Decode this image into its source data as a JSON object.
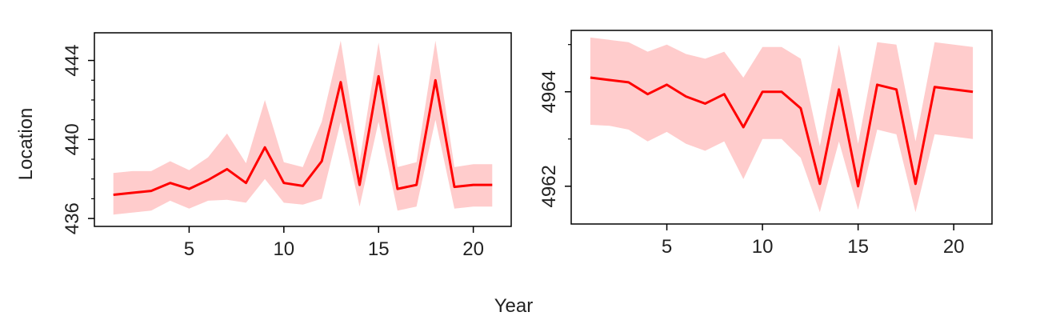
{
  "shared": {
    "xlabel": "Year",
    "ylabel": "Location",
    "line_color": "#ff0000",
    "band_color": "#ffcccc"
  },
  "chart_data": [
    {
      "type": "line",
      "x": [
        1,
        2,
        3,
        4,
        5,
        6,
        7,
        8,
        9,
        10,
        11,
        12,
        13,
        14,
        15,
        16,
        17,
        18,
        19,
        20,
        21
      ],
      "xlim": [
        0,
        22
      ],
      "xticks": [
        5,
        10,
        15,
        20
      ],
      "ylim": [
        435.6,
        445.4
      ],
      "yticks": [
        436,
        440,
        444
      ],
      "yminor": [
        437,
        438,
        439,
        441,
        442,
        443
      ],
      "series": [
        {
          "values": [
            437.2,
            437.3,
            437.4,
            437.8,
            437.5,
            437.95,
            438.5,
            437.8,
            439.6,
            437.8,
            437.65,
            438.9,
            442.9,
            437.7,
            443.2,
            437.5,
            437.7,
            443.0,
            437.6,
            437.7,
            437.7
          ],
          "lower": [
            436.2,
            436.3,
            436.4,
            436.9,
            436.5,
            436.9,
            436.95,
            436.8,
            438.0,
            436.8,
            436.7,
            437.0,
            440.9,
            436.6,
            440.9,
            436.4,
            436.6,
            441.0,
            436.5,
            436.6,
            436.6
          ],
          "upper": [
            438.3,
            438.4,
            438.4,
            438.9,
            438.45,
            439.1,
            440.3,
            438.8,
            442.0,
            438.85,
            438.6,
            440.9,
            445.0,
            438.9,
            444.9,
            438.6,
            438.85,
            445.0,
            438.6,
            438.75,
            438.75
          ]
        }
      ]
    },
    {
      "type": "line",
      "x": [
        1,
        2,
        3,
        4,
        5,
        6,
        7,
        8,
        9,
        10,
        11,
        12,
        13,
        14,
        15,
        16,
        17,
        18,
        19,
        20,
        21
      ],
      "xlim": [
        0,
        22
      ],
      "xticks": [
        5,
        10,
        15,
        20
      ],
      "ylim": [
        4961.2,
        4965.3
      ],
      "yticks": [
        4962,
        4964
      ],
      "yminor": [
        4963,
        4965
      ],
      "series": [
        {
          "values": [
            4964.3,
            4964.25,
            4964.2,
            4963.95,
            4964.15,
            4963.9,
            4963.75,
            4963.95,
            4963.25,
            4964.0,
            4964.0,
            4963.65,
            4962.05,
            4964.05,
            4962.0,
            4964.15,
            4964.05,
            4962.05,
            4964.1,
            4964.05,
            4964.0
          ],
          "lower": [
            4963.3,
            4963.28,
            4963.2,
            4962.95,
            4963.15,
            4962.9,
            4962.75,
            4962.95,
            4962.15,
            4963.0,
            4963.0,
            4962.6,
            4961.45,
            4962.95,
            4961.5,
            4963.2,
            4963.1,
            4961.45,
            4963.1,
            4963.05,
            4963.0
          ],
          "upper": [
            4965.15,
            4965.1,
            4965.05,
            4964.85,
            4965.0,
            4964.8,
            4964.7,
            4964.85,
            4964.3,
            4964.95,
            4964.95,
            4964.7,
            4962.85,
            4965.0,
            4962.9,
            4965.05,
            4965.0,
            4962.95,
            4965.05,
            4965.0,
            4964.95
          ]
        }
      ]
    }
  ]
}
